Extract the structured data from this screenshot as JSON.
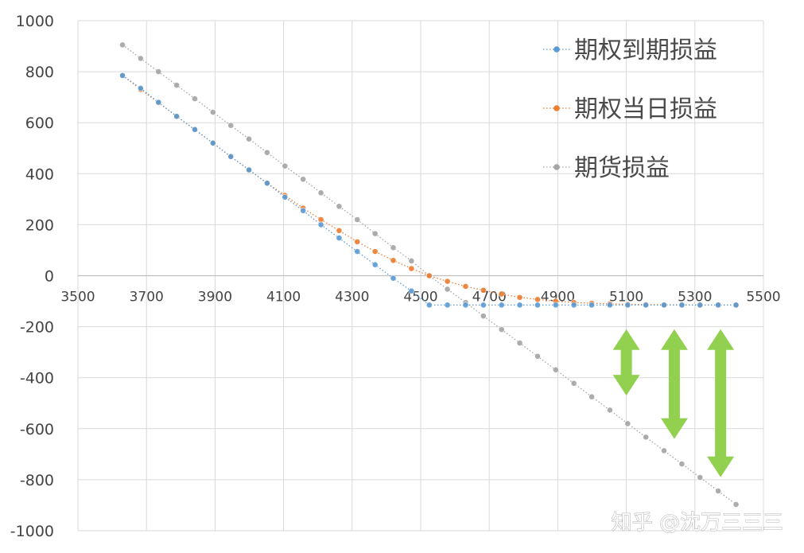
{
  "chart_data": {
    "type": "line",
    "title": "",
    "xlabel": "",
    "ylabel": "",
    "xlim": [
      3500,
      5500
    ],
    "ylim": [
      -1000,
      1000
    ],
    "x_ticks": [
      "3500",
      "3700",
      "3900",
      "4100",
      "4300",
      "4500",
      "4700",
      "4900",
      "5100",
      "5300",
      "5500"
    ],
    "y_ticks": [
      "1000",
      "800",
      "600",
      "400",
      "200",
      "0",
      "-200",
      "-400",
      "-600",
      "-800",
      "-1000"
    ],
    "grid": true,
    "legend_position": "top-right",
    "series": [
      {
        "name": "期权到期损益",
        "color": "#5b9bd5",
        "x": [
          3630,
          3683,
          3735,
          3788,
          3841,
          3894,
          3946,
          3999,
          4052,
          4104,
          4157,
          4209,
          4262,
          4315,
          4367,
          4420,
          4473,
          4525,
          4578,
          4631,
          4683,
          4736,
          4789,
          4841,
          4894,
          4947,
          4999,
          5052,
          5104,
          5157,
          5210,
          5262,
          5315,
          5368,
          5420
        ],
        "y": [
          785,
          735,
          680,
          625,
          573,
          520,
          467,
          415,
          363,
          308,
          255,
          200,
          148,
          95,
          43,
          -10,
          -60,
          -115,
          -115,
          -115,
          -115,
          -115,
          -115,
          -115,
          -115,
          -115,
          -115,
          -115,
          -115,
          -115,
          -115,
          -115,
          -115,
          -115,
          -115
        ]
      },
      {
        "name": "期权当日损益",
        "color": "#ed7d31",
        "x": [
          3630,
          3683,
          3735,
          3788,
          3841,
          3894,
          3946,
          3999,
          4052,
          4104,
          4157,
          4209,
          4262,
          4315,
          4367,
          4420,
          4473,
          4525,
          4578,
          4631,
          4683,
          4736,
          4789,
          4841,
          4894,
          4947,
          4999,
          5052,
          5104,
          5157,
          5210,
          5262,
          5315,
          5368,
          5420
        ],
        "y": [
          785,
          730,
          678,
          625,
          573,
          520,
          467,
          415,
          363,
          315,
          265,
          220,
          177,
          133,
          95,
          60,
          28,
          0,
          -22,
          -42,
          -57,
          -72,
          -85,
          -93,
          -100,
          -105,
          -108,
          -110,
          -112,
          -113,
          -114,
          -114,
          -115,
          -115,
          -115
        ]
      },
      {
        "name": "期货损益",
        "color": "#a5a5a5",
        "x": [
          3630,
          3683,
          3735,
          3788,
          3841,
          3894,
          3946,
          3999,
          4052,
          4104,
          4157,
          4209,
          4262,
          4315,
          4367,
          4420,
          4473,
          4525,
          4578,
          4631,
          4683,
          4736,
          4789,
          4841,
          4894,
          4947,
          4999,
          5052,
          5104,
          5157,
          5210,
          5262,
          5315,
          5368,
          5420
        ],
        "y": [
          905,
          852,
          800,
          747,
          694,
          641,
          589,
          536,
          483,
          430,
          378,
          325,
          272,
          220,
          165,
          110,
          58,
          0,
          -53,
          -105,
          -158,
          -211,
          -264,
          -316,
          -369,
          -422,
          -475,
          -527,
          -580,
          -633,
          -686,
          -738,
          -791,
          -844,
          -897
        ]
      }
    ],
    "annotations": [
      {
        "type": "double-arrow",
        "color": "#92d050",
        "x": 5100,
        "y_top": -210,
        "y_bottom": -470
      },
      {
        "type": "double-arrow",
        "color": "#92d050",
        "x": 5240,
        "y_top": -210,
        "y_bottom": -640
      },
      {
        "type": "double-arrow",
        "color": "#92d050",
        "x": 5375,
        "y_top": -210,
        "y_bottom": -790
      }
    ]
  },
  "watermark": "知乎 @沈万三三三"
}
